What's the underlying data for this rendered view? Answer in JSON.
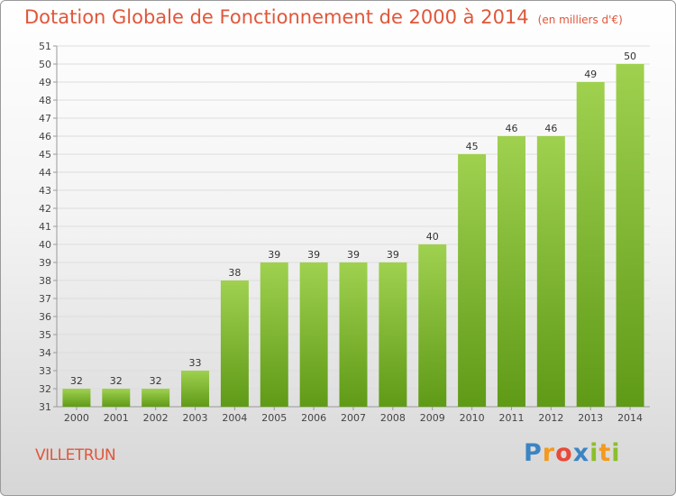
{
  "header": {
    "title": "Dotation Globale de Fonctionnement de 2000 à 2014",
    "subtitle": "(en milliers d'€)"
  },
  "commune": "VILLETRUN",
  "logo": {
    "text": "Proxiti"
  },
  "colors": {
    "bar_top": "#9fd14f",
    "bar_bottom": "#5f9a17",
    "title": "#e0563a",
    "grid": "#dddddd"
  },
  "chart_data": {
    "type": "bar",
    "categories": [
      "2000",
      "2001",
      "2002",
      "2003",
      "2004",
      "2005",
      "2006",
      "2007",
      "2008",
      "2009",
      "2010",
      "2011",
      "2012",
      "2013",
      "2014"
    ],
    "values": [
      32,
      32,
      32,
      33,
      38,
      39,
      39,
      39,
      39,
      40,
      45,
      46,
      46,
      49,
      50
    ],
    "title": "Dotation Globale de Fonctionnement de 2000 à 2014",
    "subtitle": "(en milliers d'€)",
    "xlabel": "",
    "ylabel": "",
    "ylim": [
      31,
      51
    ],
    "yticks": [
      31,
      32,
      33,
      34,
      35,
      36,
      37,
      38,
      39,
      40,
      41,
      42,
      43,
      44,
      45,
      46,
      47,
      48,
      49,
      50,
      51
    ],
    "grid": true,
    "data_labels": true
  }
}
